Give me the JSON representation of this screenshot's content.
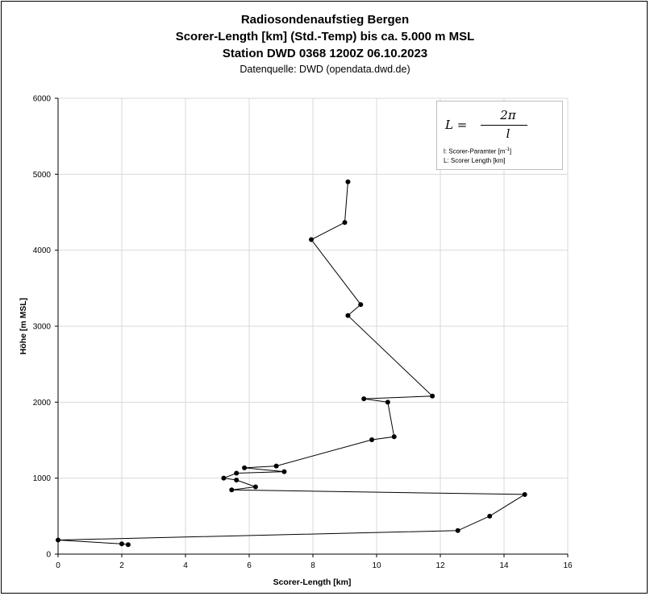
{
  "chart_data": {
    "type": "line",
    "title": "Radiosondenaufstieg Bergen",
    "subtitle_lines": [
      "Scorer-Length [km] (Std.-Temp) bis ca. 5.000 m MSL",
      "Station DWD 0368 1200Z 06.10.2023"
    ],
    "source": "Datenquelle: DWD (opendata.dwd.de)",
    "xlabel": "Scorer-Length [km]",
    "ylabel": "Höhe [m MSL]",
    "xlim": [
      0,
      16
    ],
    "ylim": [
      0,
      6000
    ],
    "x_ticks": [
      0,
      2,
      4,
      6,
      8,
      10,
      12,
      14,
      16
    ],
    "y_ticks": [
      0,
      1000,
      2000,
      3000,
      4000,
      5000,
      6000
    ],
    "grid": true,
    "series": [
      {
        "color": "#000000",
        "points": [
          [
            2.2,
            125
          ],
          [
            2.0,
            135
          ],
          [
            0.0,
            185
          ],
          [
            12.55,
            310
          ],
          [
            13.55,
            500
          ],
          [
            14.65,
            785
          ],
          [
            5.45,
            845
          ],
          [
            6.2,
            885
          ],
          [
            5.6,
            975
          ],
          [
            5.2,
            1000
          ],
          [
            5.6,
            1065
          ],
          [
            7.1,
            1085
          ],
          [
            5.85,
            1135
          ],
          [
            6.85,
            1160
          ],
          [
            9.85,
            1505
          ],
          [
            10.55,
            1545
          ],
          [
            10.35,
            2000
          ],
          [
            9.6,
            2045
          ],
          [
            11.75,
            2080
          ],
          [
            9.1,
            3140
          ],
          [
            9.5,
            3285
          ],
          [
            7.95,
            4140
          ],
          [
            9.0,
            4365
          ],
          [
            9.1,
            4900
          ]
        ]
      }
    ],
    "annotation": {
      "formula_lhs": "L =",
      "formula_numerator": "2π",
      "formula_denominator": "l",
      "note_1_prefix": "l: Scorer-Paramter [m",
      "note_1_sup": "-1",
      "note_1_suffix": "]",
      "note_2": "L: Scorer Length [km]"
    }
  }
}
